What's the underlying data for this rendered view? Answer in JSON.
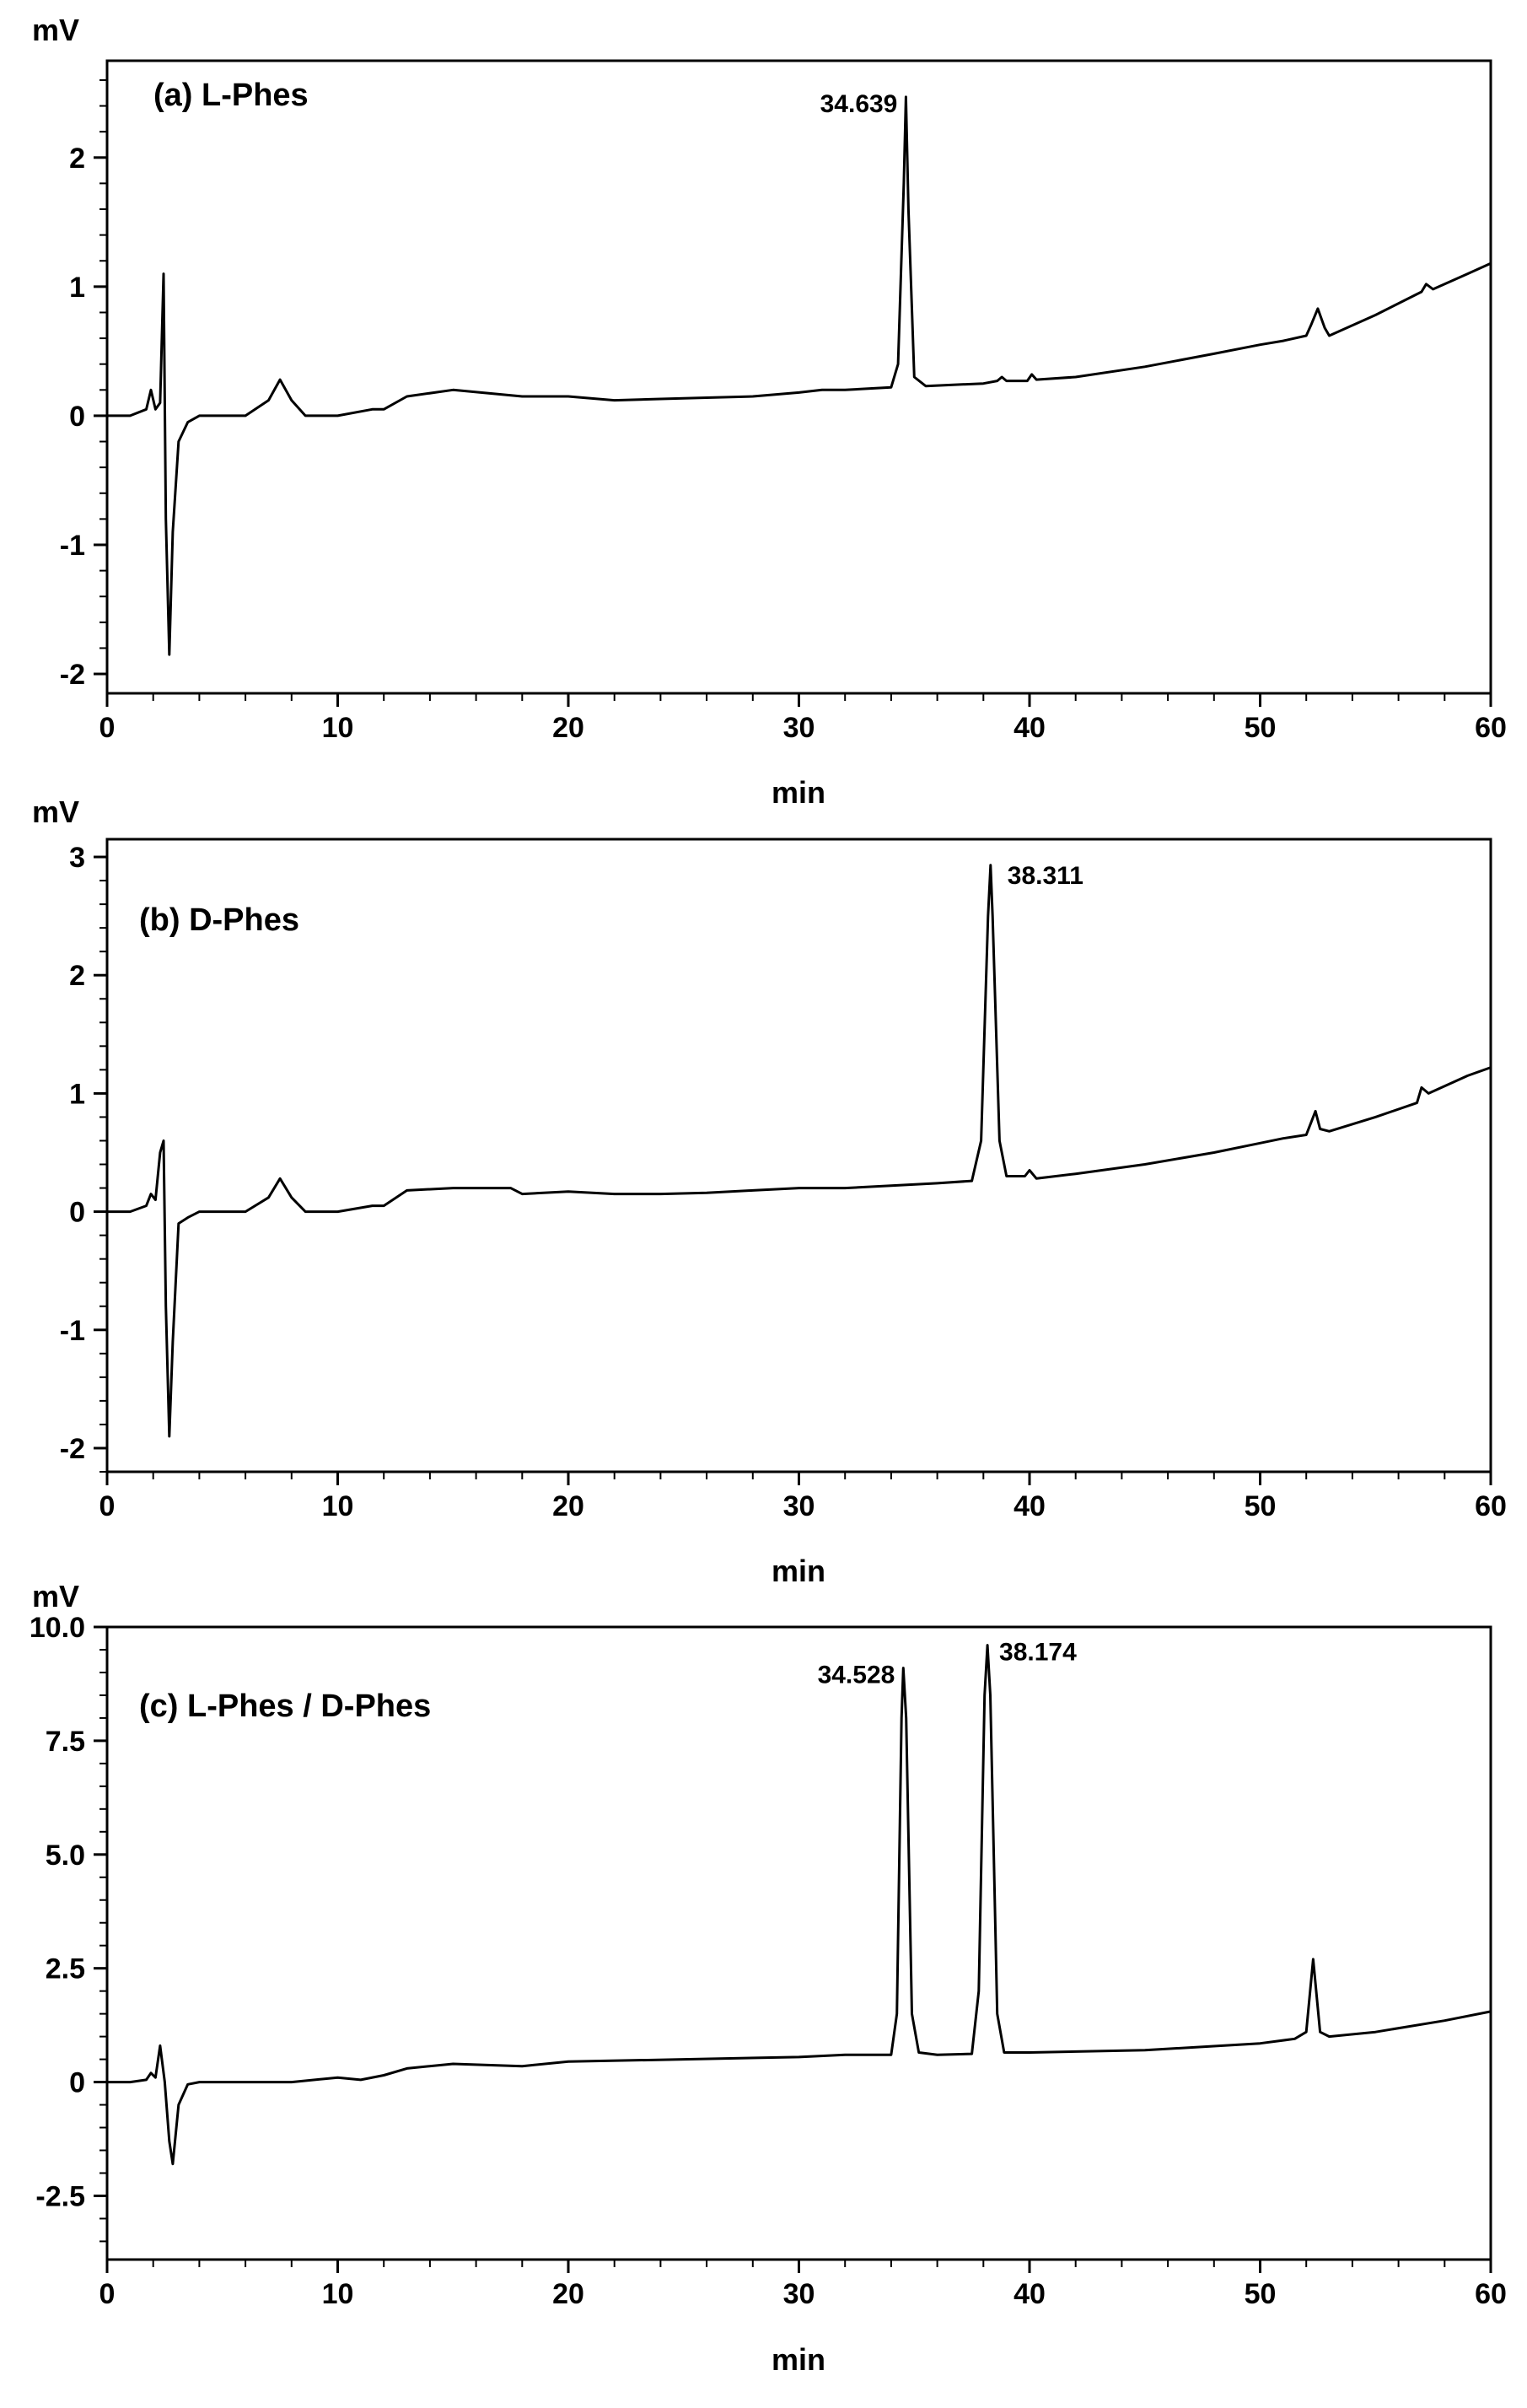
{
  "chart_data": [
    {
      "type": "line",
      "title": "(a) L-Phes",
      "ylabel": "mV",
      "xlabel": "min",
      "xlim": [
        0,
        60
      ],
      "ylim": [
        -2.15,
        2.75
      ],
      "xticks": [
        "0",
        "10",
        "20",
        "30",
        "40",
        "50",
        "60"
      ],
      "yticks": [
        "-2",
        "-1",
        "0",
        "1",
        "2"
      ],
      "ytick_values": [
        -2,
        -1,
        0,
        1,
        2
      ],
      "peak_labels": [
        {
          "x": 34.639,
          "y": 2.47,
          "text": "34.639"
        }
      ],
      "series": [
        {
          "x": [
            0,
            1,
            1.7,
            1.9,
            2.1,
            2.3,
            2.45,
            2.55,
            2.7,
            2.85,
            3.1,
            3.5,
            4,
            6,
            7,
            7.5,
            8,
            8.6,
            10,
            11.5,
            12,
            13,
            15,
            18,
            20,
            22,
            24,
            26,
            28,
            30,
            31,
            32,
            33,
            34,
            34.3,
            34.55,
            34.639,
            34.75,
            35,
            35.5,
            38,
            38.6,
            38.8,
            39,
            39.9,
            40.1,
            40.3,
            42,
            45,
            48,
            50,
            51,
            52,
            52.2,
            52.5,
            52.8,
            53,
            55,
            57,
            57.2,
            57.5,
            59,
            60
          ],
          "y": [
            0,
            0,
            0.05,
            0.2,
            0.05,
            0.1,
            1.1,
            -0.8,
            -1.85,
            -0.9,
            -0.2,
            -0.05,
            0,
            0,
            0.12,
            0.28,
            0.12,
            0,
            0,
            0.05,
            0.05,
            0.15,
            0.2,
            0.15,
            0.15,
            0.12,
            0.13,
            0.14,
            0.15,
            0.18,
            0.2,
            0.2,
            0.21,
            0.22,
            0.4,
            1.8,
            2.47,
            1.6,
            0.3,
            0.23,
            0.25,
            0.27,
            0.3,
            0.27,
            0.27,
            0.32,
            0.28,
            0.3,
            0.38,
            0.48,
            0.55,
            0.58,
            0.62,
            0.7,
            0.83,
            0.68,
            0.62,
            0.78,
            0.96,
            1.02,
            0.98,
            1.1,
            1.18
          ]
        }
      ]
    },
    {
      "type": "line",
      "title": "(b) D-Phes",
      "ylabel": "mV",
      "xlabel": "min",
      "xlim": [
        0,
        60
      ],
      "ylim": [
        -2.2,
        3.15
      ],
      "xticks": [
        "0",
        "10",
        "20",
        "30",
        "40",
        "50",
        "60"
      ],
      "yticks": [
        "-2",
        "-1",
        "0",
        "1",
        "2",
        "3"
      ],
      "ytick_values": [
        -2,
        -1,
        0,
        1,
        2,
        3
      ],
      "peak_labels": [
        {
          "x": 38.311,
          "y": 2.93,
          "text": "38.311"
        }
      ],
      "series": [
        {
          "x": [
            0,
            1,
            1.7,
            1.9,
            2.1,
            2.3,
            2.45,
            2.55,
            2.7,
            2.85,
            3.1,
            3.5,
            4,
            6,
            7,
            7.5,
            8,
            8.6,
            10,
            11.5,
            12,
            13,
            15,
            17.5,
            18,
            20,
            22,
            24,
            26,
            28,
            30,
            32,
            34,
            36,
            37.5,
            37.9,
            38.2,
            38.311,
            38.4,
            38.7,
            39,
            39.8,
            40,
            40.3,
            42,
            45,
            48,
            50,
            51,
            52,
            52.2,
            52.4,
            52.6,
            53,
            55,
            56.8,
            57,
            57.3,
            59,
            60
          ],
          "y": [
            0,
            0,
            0.05,
            0.15,
            0.1,
            0.5,
            0.6,
            -0.8,
            -1.9,
            -1.1,
            -0.1,
            -0.05,
            0,
            0,
            0.12,
            0.28,
            0.12,
            0,
            0,
            0.05,
            0.05,
            0.18,
            0.2,
            0.2,
            0.15,
            0.17,
            0.15,
            0.15,
            0.16,
            0.18,
            0.2,
            0.2,
            0.22,
            0.24,
            0.26,
            0.6,
            2.5,
            2.93,
            2.5,
            0.6,
            0.3,
            0.3,
            0.35,
            0.28,
            0.32,
            0.4,
            0.5,
            0.58,
            0.62,
            0.65,
            0.75,
            0.85,
            0.7,
            0.68,
            0.8,
            0.92,
            1.05,
            1.0,
            1.15,
            1.22
          ]
        }
      ]
    },
    {
      "type": "line",
      "title": "(c) L-Phes / D-Phes",
      "ylabel": "mV",
      "xlabel": "min",
      "xlim": [
        0,
        60
      ],
      "ylim": [
        -3.9,
        10.0
      ],
      "xticks": [
        "0",
        "10",
        "20",
        "30",
        "40",
        "50",
        "60"
      ],
      "yticks": [
        "-2.5",
        "0",
        "2.5",
        "5.0",
        "7.5",
        "10.0"
      ],
      "ytick_values": [
        -2.5,
        0,
        2.5,
        5.0,
        7.5,
        10.0
      ],
      "peak_labels": [
        {
          "x": 34.528,
          "y": 9.1,
          "text": "34.528",
          "side": "left"
        },
        {
          "x": 38.174,
          "y": 9.6,
          "text": "38.174",
          "side": "right"
        }
      ],
      "series": [
        {
          "x": [
            0,
            1,
            1.7,
            1.9,
            2.1,
            2.3,
            2.5,
            2.7,
            2.85,
            3.1,
            3.5,
            4,
            8,
            10,
            11,
            12,
            13,
            15,
            18,
            20,
            25,
            30,
            32,
            34,
            34.25,
            34.45,
            34.528,
            34.65,
            34.9,
            35.2,
            36,
            37.5,
            37.8,
            38.05,
            38.174,
            38.3,
            38.6,
            38.9,
            40,
            45,
            50,
            51.5,
            52,
            52.3,
            52.6,
            53,
            55,
            58,
            60
          ],
          "y": [
            0,
            0,
            0.05,
            0.2,
            0.1,
            0.8,
            0,
            -1.3,
            -1.8,
            -0.5,
            -0.05,
            0,
            0,
            0.1,
            0.05,
            0.15,
            0.3,
            0.4,
            0.35,
            0.45,
            0.5,
            0.55,
            0.6,
            0.6,
            1.5,
            8.0,
            9.1,
            8.0,
            1.5,
            0.65,
            0.6,
            0.62,
            2.0,
            8.5,
            9.6,
            8.5,
            1.5,
            0.65,
            0.65,
            0.7,
            0.85,
            0.95,
            1.1,
            2.7,
            1.1,
            1.0,
            1.1,
            1.35,
            1.55
          ]
        }
      ]
    }
  ]
}
